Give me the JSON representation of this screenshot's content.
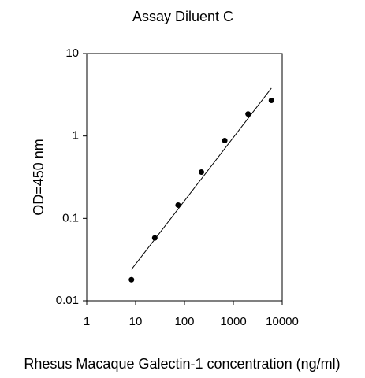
{
  "chart_data": {
    "type": "scatter",
    "title": "Assay Diluent C",
    "x_label": "Rhesus Macaque Galectin-1 concentration (ng/ml)",
    "y_label": "OD=450 nm",
    "x": [
      8.23,
      24.69,
      74.07,
      222.2,
      666.7,
      2000,
      6000
    ],
    "y": [
      0.018,
      0.058,
      0.145,
      0.365,
      0.88,
      1.85,
      2.7
    ],
    "color": "#000000",
    "fit_line": {
      "x": [
        8.23,
        6000
      ],
      "y": [
        0.024,
        3.8
      ]
    },
    "x_log": true,
    "y_log": true,
    "xlim": [
      1,
      10000
    ],
    "xticks": [
      1,
      10,
      100,
      1000,
      10000
    ],
    "ylim": [
      0.01,
      10
    ],
    "yticks": [
      0.01,
      0.1,
      1,
      10
    ]
  }
}
